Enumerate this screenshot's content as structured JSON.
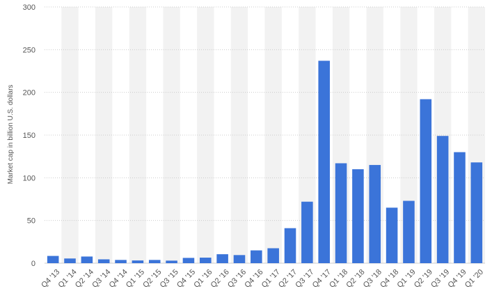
{
  "chart_data": {
    "type": "bar",
    "title": "",
    "xlabel": "",
    "ylabel": "Market cap in billion U.S. dollars",
    "ylim": [
      0,
      300
    ],
    "yticks": [
      0,
      50,
      100,
      150,
      200,
      250,
      300
    ],
    "grid": true,
    "legend": "none",
    "categories": [
      "Q4 '13",
      "Q1 '14",
      "Q2 '14",
      "Q3 '14",
      "Q4 '14",
      "Q1 '15",
      "Q2 '15",
      "Q3 '15",
      "Q4 '15",
      "Q1 '16",
      "Q2 '16",
      "Q3 '16",
      "Q4 '16",
      "Q1 '17",
      "Q2 '17",
      "Q3 '17",
      "Q4 '17",
      "Q1 '18",
      "Q2 '18",
      "Q3 '18",
      "Q4 '18",
      "Q1 '19",
      "Q2 '19",
      "Q3 '19",
      "Q4 '19",
      "Q1 '20"
    ],
    "values": [
      8.5,
      5.5,
      7.8,
      4.5,
      3.8,
      3.2,
      3.8,
      3.0,
      6.2,
      6.5,
      10.5,
      9.5,
      15.0,
      17.5,
      41.0,
      72.0,
      237.0,
      117.0,
      110.0,
      115.0,
      65.0,
      73.0,
      192.0,
      149.0,
      130.0,
      118.0
    ],
    "colors": {
      "bar": "#3b74d9",
      "band": "#f2f2f2",
      "grid": "#cccccc",
      "text": "#555555"
    }
  }
}
